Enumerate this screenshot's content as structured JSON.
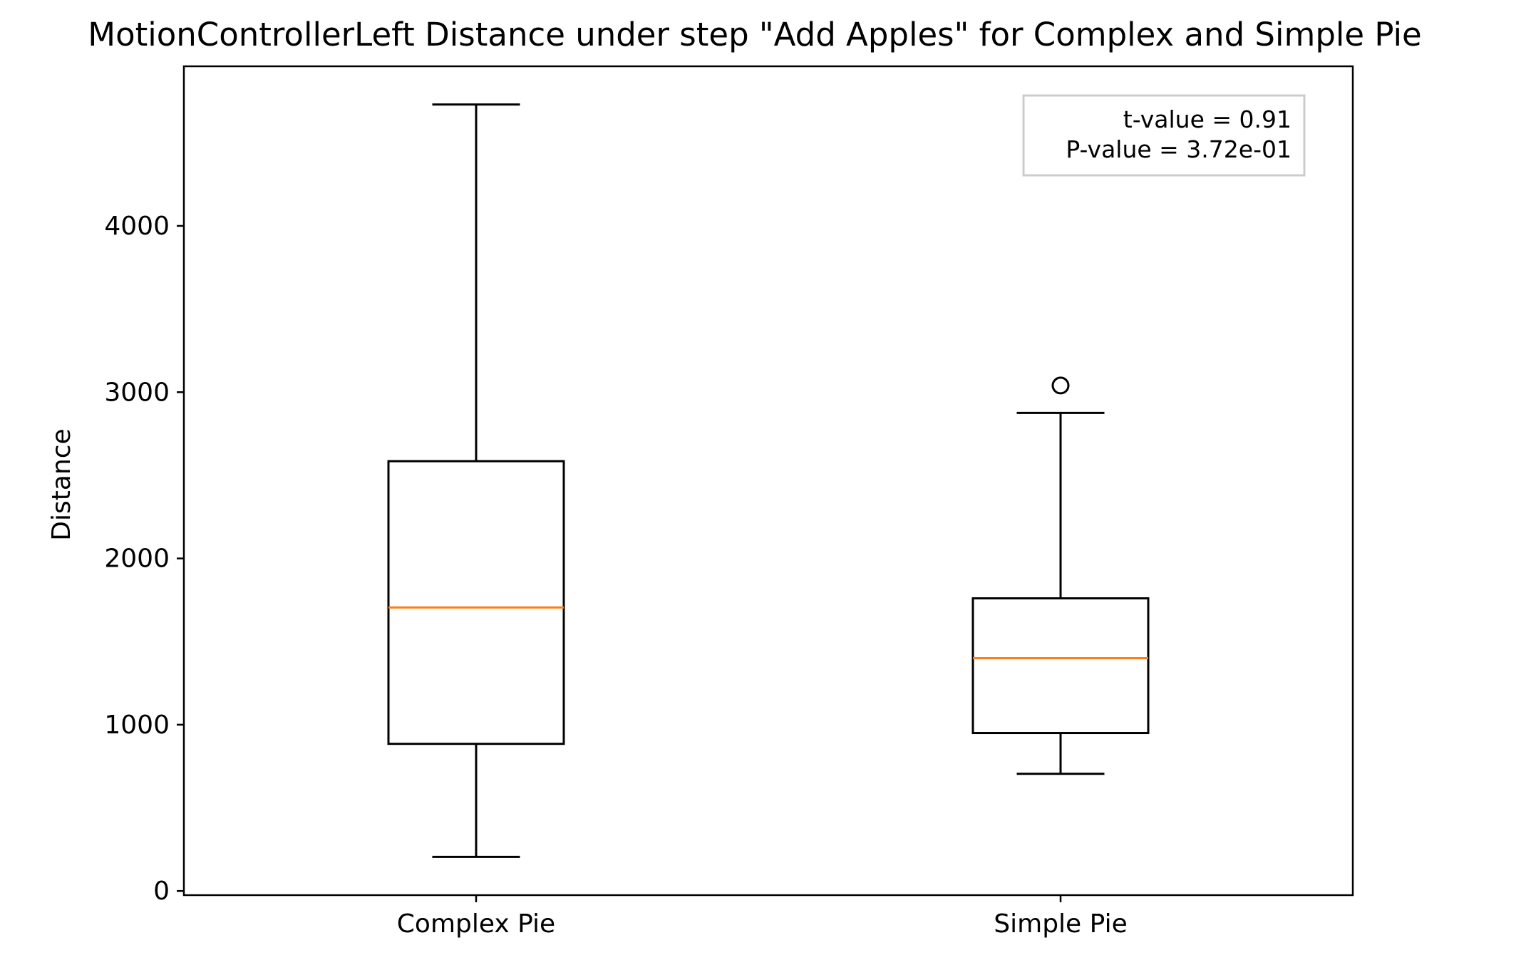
{
  "chart_data": {
    "type": "boxplot",
    "title": "MotionControllerLeft Distance under step \"Add Apples\" for Complex and Simple Pie",
    "xlabel": "",
    "ylabel": "Distance",
    "ylim": [
      -25,
      4960
    ],
    "yticks": [
      0,
      1000,
      2000,
      3000,
      4000
    ],
    "grid": false,
    "categories": [
      "Complex Pie",
      "Simple Pie"
    ],
    "boxes": [
      {
        "category": "Complex Pie",
        "whisker_low": 205,
        "q1": 885,
        "median": 1705,
        "q3": 2585,
        "whisker_high": 4730,
        "outliers": []
      },
      {
        "category": "Simple Pie",
        "whisker_low": 705,
        "q1": 950,
        "median": 1400,
        "q3": 1760,
        "whisker_high": 2875,
        "outliers": [
          3040
        ]
      }
    ],
    "annotation": {
      "lines": [
        "t-value = 0.91",
        "P-value = 3.72e-01"
      ],
      "placement": "top-right"
    },
    "colors": {
      "box": "#000000",
      "median": "#ff7f0e",
      "annotation_border": "#cccccc"
    }
  }
}
